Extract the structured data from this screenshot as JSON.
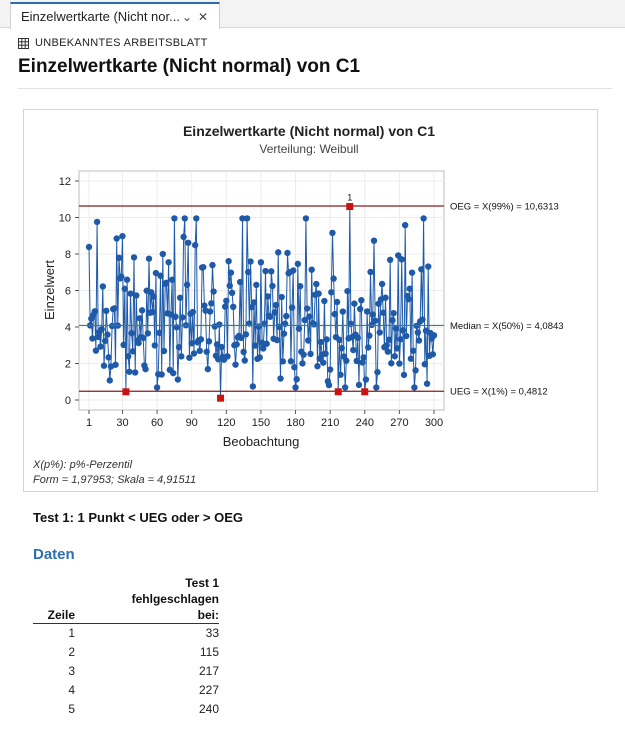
{
  "tab": {
    "title": "Einzelwertkarte (Nicht nor...",
    "dropdown_icon": "chevron-down-icon",
    "close_icon": "close-icon"
  },
  "breadcrumb": {
    "icon": "worksheet-grid-icon",
    "label": "UNBEKANNTES ARBEITSBLATT"
  },
  "page_title": "Einzelwertkarte (Nicht normal) von C1",
  "chart_data": {
    "type": "line",
    "title": "Einzelwertkarte (Nicht normal) von C1",
    "subtitle": "Verteilung: Weibull",
    "xlabel": "Beobachtung",
    "ylabel": "Einzelwert",
    "xlim": [
      1,
      300
    ],
    "ylim": [
      0,
      12
    ],
    "xticks": [
      "1",
      "30",
      "60",
      "90",
      "120",
      "150",
      "180",
      "210",
      "240",
      "270",
      "300"
    ],
    "yticks": [
      "0",
      "2",
      "4",
      "6",
      "8",
      "10",
      "12"
    ],
    "grid": true,
    "control_limits": [
      {
        "label": "OEG = X(99%) = 10,6313",
        "value": 10.6313,
        "color": "#8b1a1a"
      },
      {
        "label": "Median = X(50%) = 4,0843",
        "value": 4.0843,
        "color": "#2e8b57"
      },
      {
        "label": "UEG = X(1%) = 0,4812",
        "value": 0.4812,
        "color": "#8b1a1a"
      }
    ],
    "series_color": "#1f5aa8",
    "flag_color": "#cc1111",
    "flagged_points": [
      {
        "x": 33,
        "y": 0.45
      },
      {
        "x": 115,
        "y": 0.1
      },
      {
        "x": 217,
        "y": 0.45
      },
      {
        "x": 227,
        "y": 10.6
      },
      {
        "x": 240,
        "y": 0.45
      }
    ],
    "flag_label": "1",
    "point_count": 300,
    "y_min_observed": 0.1,
    "y_max_observed": 10.6
  },
  "notes": {
    "line1": "X(p%): p%-Perzentil",
    "line2": "Form = 1,97953; Skala = 4,91511"
  },
  "test_result": "Test 1: 1 Punkt < UEG oder > OEG",
  "section_title": "Daten",
  "table": {
    "header_row": "Zeile",
    "header_test": [
      "Test 1",
      "fehlgeschlagen",
      "bei:"
    ],
    "rows": [
      {
        "row": "1",
        "value": "33"
      },
      {
        "row": "2",
        "value": "115"
      },
      {
        "row": "3",
        "value": "217"
      },
      {
        "row": "4",
        "value": "227"
      },
      {
        "row": "5",
        "value": "240"
      }
    ]
  }
}
